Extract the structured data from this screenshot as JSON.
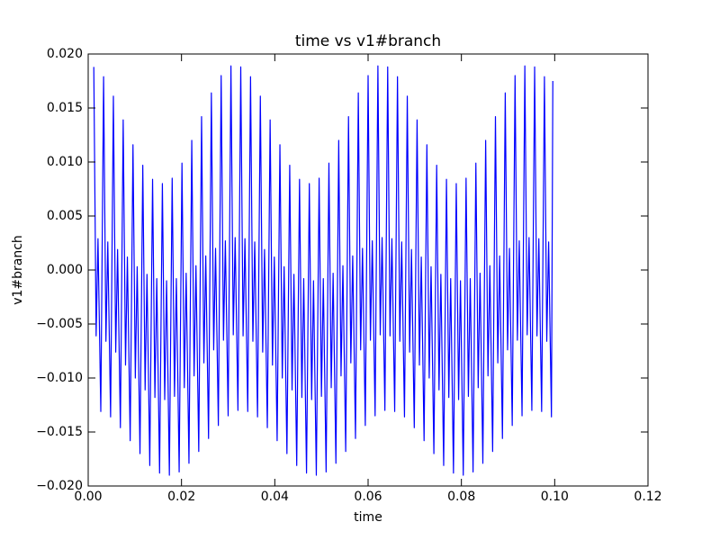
{
  "chart_data": {
    "type": "line",
    "title": "time  vs  v1#branch",
    "x_label": "time",
    "y_label": "v1#branch",
    "xlim": [
      0,
      0.12
    ],
    "ylim": [
      -0.02,
      0.02
    ],
    "xticks": [
      {
        "value": 0,
        "label": "0.00"
      },
      {
        "value": 0.02,
        "label": "0.02"
      },
      {
        "value": 0.04,
        "label": "0.04"
      },
      {
        "value": 0.06,
        "label": "0.06"
      },
      {
        "value": 0.08,
        "label": "0.08"
      },
      {
        "value": 0.1,
        "label": "0.10"
      },
      {
        "value": 0.12,
        "label": "0.12"
      }
    ],
    "yticks": [
      {
        "value": -0.02,
        "label": "−0.020"
      },
      {
        "value": -0.015,
        "label": "−0.015"
      },
      {
        "value": -0.01,
        "label": "−0.010"
      },
      {
        "value": -0.005,
        "label": "−0.005"
      },
      {
        "value": 0,
        "label": "0.000"
      },
      {
        "value": 0.005,
        "label": "0.005"
      },
      {
        "value": 0.01,
        "label": "0.010"
      },
      {
        "value": 0.015,
        "label": "0.015"
      },
      {
        "value": 0.02,
        "label": "0.020"
      }
    ],
    "grid": false,
    "x": [
      0.0012,
      0.0017,
      0.0021,
      0.0027,
      0.0033,
      0.0038,
      0.0042,
      0.0048,
      0.0054,
      0.0059,
      0.0063,
      0.0069,
      0.0075,
      0.008,
      0.0084,
      0.009,
      0.0096,
      0.0101,
      0.0105,
      0.0111,
      0.0117,
      0.0122,
      0.0126,
      0.0132,
      0.0138,
      0.0143,
      0.0147,
      0.0153,
      0.0159,
      0.0164,
      0.0168,
      0.0174,
      0.018,
      0.0185,
      0.0189,
      0.0195,
      0.0201,
      0.0206,
      0.021,
      0.0216,
      0.0222,
      0.0227,
      0.0231,
      0.0237,
      0.0243,
      0.0248,
      0.0252,
      0.0258,
      0.0264,
      0.0269,
      0.0273,
      0.0279,
      0.0285,
      0.029,
      0.0294,
      0.03,
      0.0306,
      0.0311,
      0.0315,
      0.0321,
      0.0327,
      0.0332,
      0.0336,
      0.0342,
      0.0348,
      0.0353,
      0.0357,
      0.0363,
      0.0369,
      0.0374,
      0.0378,
      0.0384,
      0.039,
      0.0395,
      0.0399,
      0.0405,
      0.0411,
      0.0416,
      0.042,
      0.0426,
      0.0432,
      0.0437,
      0.0441,
      0.0447,
      0.0453,
      0.0458,
      0.0462,
      0.0468,
      0.0474,
      0.0479,
      0.0483,
      0.0489,
      0.0495,
      0.05,
      0.0504,
      0.051,
      0.0516,
      0.0521,
      0.0525,
      0.0531,
      0.0537,
      0.0542,
      0.0546,
      0.0552,
      0.0558,
      0.0563,
      0.0567,
      0.0573,
      0.0579,
      0.0584,
      0.0588,
      0.0594,
      0.06,
      0.0605,
      0.0609,
      0.0615,
      0.0621,
      0.0626,
      0.063,
      0.0636,
      0.0642,
      0.0647,
      0.0651,
      0.0657,
      0.0663,
      0.0668,
      0.0672,
      0.0678,
      0.0684,
      0.0689,
      0.0693,
      0.0699,
      0.0705,
      0.071,
      0.0714,
      0.072,
      0.0726,
      0.0731,
      0.0735,
      0.0741,
      0.0747,
      0.0752,
      0.0756,
      0.0762,
      0.0768,
      0.0773,
      0.0777,
      0.0783,
      0.0789,
      0.0794,
      0.0798,
      0.0804,
      0.081,
      0.0815,
      0.0819,
      0.0825,
      0.0831,
      0.0836,
      0.084,
      0.0846,
      0.0852,
      0.0857,
      0.0861,
      0.0867,
      0.0873,
      0.0878,
      0.0882,
      0.0888,
      0.0894,
      0.0899,
      0.0903,
      0.0909,
      0.0915,
      0.092,
      0.0924,
      0.093,
      0.0936,
      0.0941,
      0.0945,
      0.0951,
      0.0957,
      0.0962,
      0.0966,
      0.0972,
      0.0978,
      0.0983,
      0.0987,
      0.0993,
      0.0996
    ],
    "series": [
      {
        "name": "v1#branch",
        "color": "#0000ff",
        "values": [
          0.0188,
          -0.0061,
          0.0029,
          -0.0131,
          0.0179,
          -0.0066,
          0.0026,
          -0.0136,
          0.0161,
          -0.0076,
          0.0019,
          -0.0146,
          0.0139,
          -0.0088,
          0.0012,
          -0.0158,
          0.0116,
          -0.01,
          0.0003,
          -0.017,
          0.0097,
          -0.0111,
          -0.0004,
          -0.0181,
          0.0084,
          -0.0118,
          -0.0008,
          -0.0188,
          0.008,
          -0.012,
          -0.001,
          -0.019,
          0.0085,
          -0.0117,
          -0.0008,
          -0.0187,
          0.0099,
          -0.0109,
          -0.0003,
          -0.0179,
          0.012,
          -0.0098,
          0.0004,
          -0.0168,
          0.0142,
          -0.0086,
          0.0013,
          -0.0156,
          0.0164,
          -0.0074,
          0.002,
          -0.0144,
          0.018,
          -0.0065,
          0.0027,
          -0.0135,
          0.0189,
          -0.006,
          0.003,
          -0.013,
          0.0188,
          -0.0061,
          0.0029,
          -0.0131,
          0.0179,
          -0.0066,
          0.0026,
          -0.0136,
          0.0161,
          -0.0076,
          0.0019,
          -0.0146,
          0.0139,
          -0.0088,
          0.0012,
          -0.0158,
          0.0116,
          -0.01,
          0.0003,
          -0.017,
          0.0097,
          -0.0111,
          -0.0004,
          -0.0181,
          0.0084,
          -0.0118,
          -0.0008,
          -0.0188,
          0.008,
          -0.012,
          -0.001,
          -0.019,
          0.0085,
          -0.0117,
          -0.0008,
          -0.0187,
          0.0099,
          -0.0109,
          -0.0003,
          -0.0179,
          0.012,
          -0.0098,
          0.0004,
          -0.0168,
          0.0142,
          -0.0086,
          0.0013,
          -0.0156,
          0.0164,
          -0.0074,
          0.002,
          -0.0144,
          0.018,
          -0.0065,
          0.0027,
          -0.0135,
          0.0189,
          -0.006,
          0.003,
          -0.013,
          0.0188,
          -0.0061,
          0.0029,
          -0.0131,
          0.0179,
          -0.0066,
          0.0026,
          -0.0136,
          0.0161,
          -0.0076,
          0.0019,
          -0.0146,
          0.0139,
          -0.0088,
          0.0012,
          -0.0158,
          0.0116,
          -0.01,
          0.0003,
          -0.017,
          0.0097,
          -0.0111,
          -0.0004,
          -0.0181,
          0.0084,
          -0.0118,
          -0.0008,
          -0.0188,
          0.008,
          -0.012,
          -0.001,
          -0.019,
          0.0085,
          -0.0117,
          -0.0008,
          -0.0187,
          0.0099,
          -0.0109,
          -0.0003,
          -0.0179,
          0.012,
          -0.0098,
          0.0004,
          -0.0168,
          0.0142,
          -0.0086,
          0.0013,
          -0.0156,
          0.0164,
          -0.0074,
          0.002,
          -0.0144,
          0.018,
          -0.0065,
          0.0027,
          -0.0135,
          0.0189,
          -0.006,
          0.003,
          -0.013,
          0.0188,
          -0.0061,
          0.0029,
          -0.0131,
          0.0179,
          -0.0066,
          0.0026,
          -0.0136,
          0.0175
        ]
      }
    ]
  }
}
